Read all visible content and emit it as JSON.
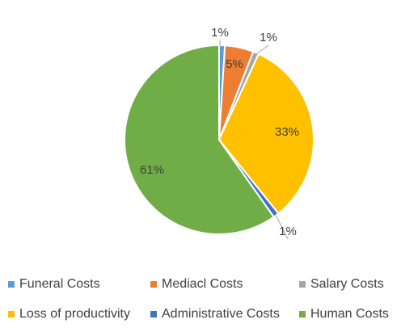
{
  "chart_data": {
    "type": "pie",
    "title": "",
    "categories": [
      "Funeral Costs",
      "Mediacl Costs",
      "Salary Costs",
      "Loss of productivity",
      "Administrative Costs",
      "Human Costs"
    ],
    "values": [
      1,
      5,
      1,
      33,
      1,
      61
    ],
    "data_labels": [
      "1%",
      "5%",
      "1%",
      "33%",
      "1%",
      "61%"
    ],
    "colors": [
      "#5B9BD5",
      "#ED7D31",
      "#A5A5A5",
      "#FFC000",
      "#4472C4",
      "#70AD47"
    ],
    "legend_position": "bottom"
  }
}
